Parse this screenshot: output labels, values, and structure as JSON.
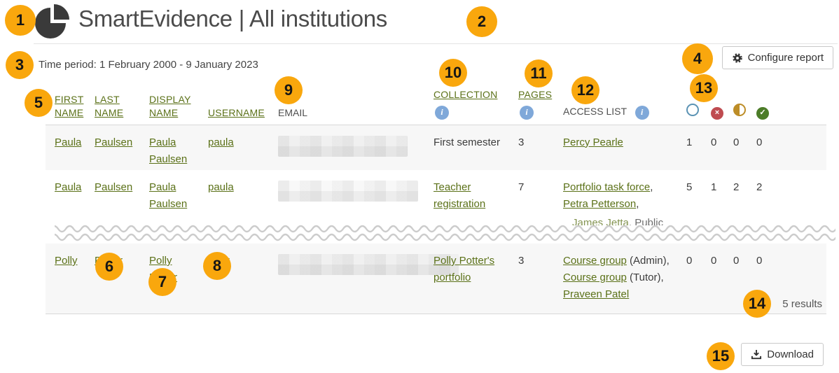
{
  "header": {
    "title": "SmartEvidence | All institutions",
    "logo_icon": "pie-chart-icon"
  },
  "toolbar": {
    "time_period": "Time period: 1 February 2000 - 9 January 2023",
    "configure_label": "Configure report"
  },
  "table": {
    "columns": [
      "FIRST NAME",
      "LAST NAME",
      "DISPLAY NAME",
      "USERNAME",
      "EMAIL",
      "COLLECTION",
      "PAGES",
      "ACCESS LIST"
    ],
    "status_icons": [
      "empty-circle",
      "red-cross-circle",
      "half-filled-circle",
      "green-check-circle"
    ],
    "rows": [
      {
        "first": "Paula",
        "last": "Paulsen",
        "display": "Paula Paulsen",
        "username": "paula",
        "email_redacted": true,
        "collection": {
          "text": "First semester",
          "link": false
        },
        "pages": "3",
        "access": [
          {
            "text": "Percy Pearle",
            "link": true
          }
        ],
        "counts": [
          "1",
          "0",
          "0",
          "0"
        ]
      },
      {
        "first": "Paula",
        "last": "Paulsen",
        "display": "Paula Paulsen",
        "username": "paula",
        "email_redacted": true,
        "collection": {
          "text": "Teacher registration",
          "link": true
        },
        "pages": "7",
        "access": [
          {
            "text": "Portfolio task force",
            "link": true
          },
          {
            "text": ", ",
            "link": false
          },
          {
            "text": "Petra Petterson",
            "link": true
          },
          {
            "text": ",",
            "link": false
          }
        ],
        "access_overflow": {
          "link_text": "James Jetta",
          "plain_text": ", Public"
        },
        "counts": [
          "5",
          "1",
          "2",
          "2"
        ]
      },
      {
        "first": "Polly",
        "last": "Potter",
        "display": "Polly Potter",
        "username": "polly",
        "email_redacted": true,
        "collection": {
          "text": "Polly Potter's portfolio",
          "link": true
        },
        "pages": "3",
        "access": [
          {
            "text": "Course group",
            "link": true
          },
          {
            "text": " (Admin), ",
            "link": false
          },
          {
            "text": "Course group",
            "link": true
          },
          {
            "text": " (Tutor), ",
            "link": false
          },
          {
            "text": "Praveen Patel",
            "link": true
          }
        ],
        "counts": [
          "0",
          "0",
          "0",
          "0"
        ]
      }
    ]
  },
  "footer": {
    "results_label": "5 results",
    "download_label": "Download"
  },
  "callouts": {
    "labels": [
      "1",
      "2",
      "3",
      "4",
      "5",
      "6",
      "7",
      "8",
      "9",
      "10",
      "11",
      "12",
      "13",
      "14",
      "15"
    ]
  },
  "colors": {
    "link_green": "#5b7118",
    "callout_orange": "#f9a70d",
    "info_blue": "#7fa8d9",
    "status_fail_red": "#bf4b50",
    "status_partial_gold": "#bd8d27",
    "status_complete_green": "#4c7c28",
    "status_empty_border": "#5b93b4"
  }
}
